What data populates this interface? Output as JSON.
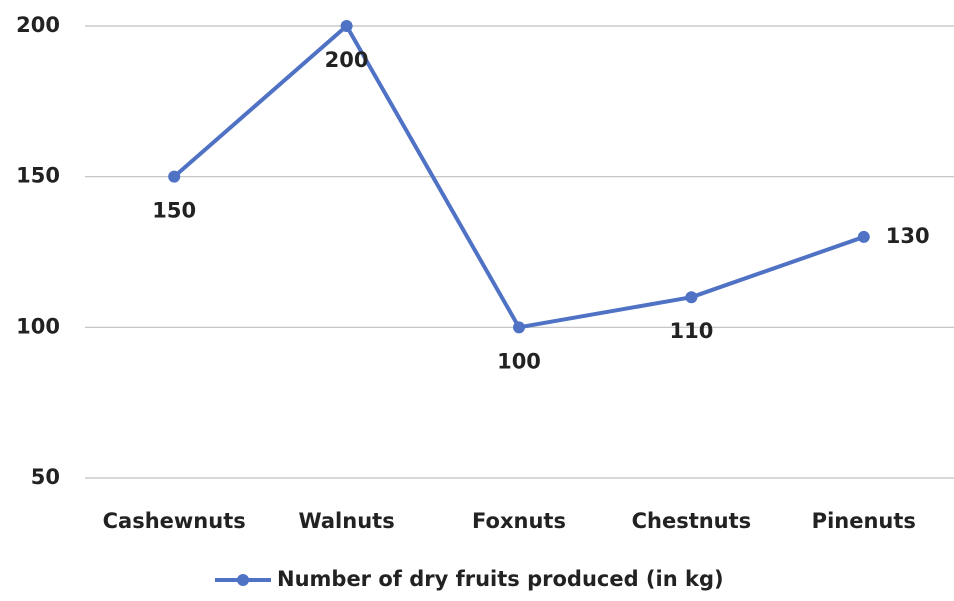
{
  "chart_data": {
    "type": "line",
    "categories": [
      "Cashewnuts",
      "Walnuts",
      "Foxnuts",
      "Chestnuts",
      "Pinenuts"
    ],
    "series": [
      {
        "name": "Number of dry fruits produced (in kg)",
        "color": "#4f72c4",
        "values": [
          150,
          200,
          100,
          110,
          130
        ]
      }
    ],
    "ylim": [
      50,
      200
    ],
    "yticks": [
      50,
      100,
      150,
      200
    ],
    "grid": true,
    "legend": "bottom"
  }
}
